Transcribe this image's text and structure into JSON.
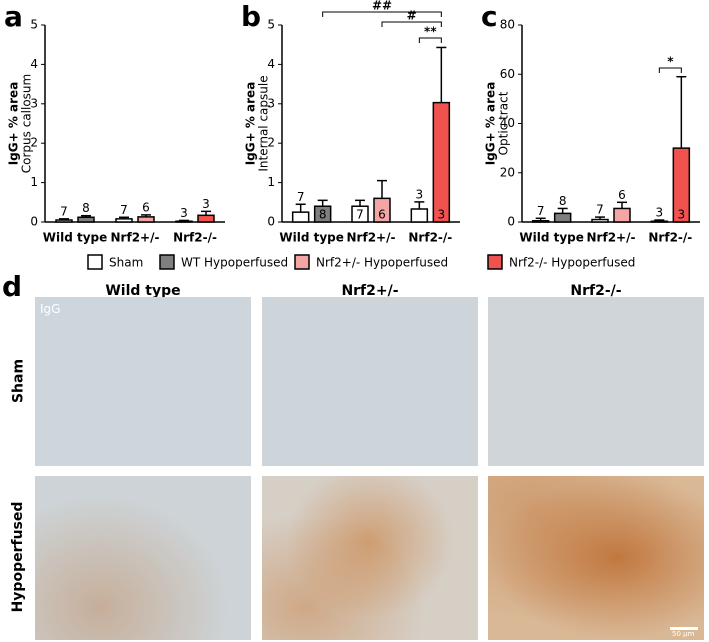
{
  "chart_data": [
    {
      "type": "bar",
      "panel": "a",
      "ylabel": "IgG+ % area",
      "ylabel2": "Corpus callosum",
      "categories": [
        "Wild type",
        "Nrf2+/-",
        "Nrf2-/-"
      ],
      "ylim": [
        0,
        5
      ],
      "yticks": [
        0,
        1,
        2,
        3,
        4,
        5
      ],
      "series": [
        {
          "name": "Sham",
          "color": "#ffffff",
          "values": [
            0.05,
            0.08,
            0.02
          ],
          "errors": [
            0.03,
            0.04,
            0.02
          ],
          "n": [
            7,
            7,
            3
          ]
        },
        {
          "name": "WT Hypoperfused",
          "color": "#7f7f7f",
          "values": [
            0.12,
            null,
            null
          ],
          "errors": [
            0.04,
            null,
            null
          ],
          "n": [
            8,
            null,
            null
          ]
        },
        {
          "name": "Nrf2+/- Hypoperfused",
          "color": "#f4a6a6",
          "values": [
            null,
            0.13,
            null
          ],
          "errors": [
            null,
            0.05,
            null
          ],
          "n": [
            null,
            6,
            null
          ]
        },
        {
          "name": "Nrf2-/- Hypoperfused",
          "color": "#f0524f",
          "values": [
            null,
            null,
            0.17
          ],
          "errors": [
            null,
            null,
            0.1
          ],
          "n": [
            null,
            null,
            3
          ]
        }
      ],
      "annotations": []
    },
    {
      "type": "bar",
      "panel": "b",
      "ylabel": "IgG+ % area",
      "ylabel2": "Internal capsule",
      "categories": [
        "Wild type",
        "Nrf2+/-",
        "Nrf2-/-"
      ],
      "ylim": [
        0,
        5
      ],
      "yticks": [
        0,
        1,
        2,
        3,
        4,
        5
      ],
      "series": [
        {
          "name": "Sham",
          "color": "#ffffff",
          "values": [
            0.25,
            0.4,
            0.33
          ],
          "errors": [
            0.2,
            0.15,
            0.18
          ],
          "n": [
            7,
            7,
            3
          ]
        },
        {
          "name": "WT Hypoperfused",
          "color": "#7f7f7f",
          "values": [
            0.4,
            null,
            null
          ],
          "errors": [
            0.15,
            null,
            null
          ],
          "n": [
            8,
            null,
            null
          ]
        },
        {
          "name": "Nrf2+/- Hypoperfused",
          "color": "#f4a6a6",
          "values": [
            null,
            0.6,
            null
          ],
          "errors": [
            null,
            0.45,
            null
          ],
          "n": [
            null,
            6,
            null
          ]
        },
        {
          "name": "Nrf2-/- Hypoperfused",
          "color": "#f0524f",
          "values": [
            null,
            null,
            3.03
          ],
          "errors": [
            null,
            null,
            1.4
          ],
          "n": [
            null,
            null,
            3
          ]
        }
      ],
      "annotations": [
        "##",
        "#",
        "**"
      ]
    },
    {
      "type": "bar",
      "panel": "c",
      "ylabel": "IgG+ % area",
      "ylabel2": "Optic tract",
      "categories": [
        "Wild type",
        "Nrf2+/-",
        "Nrf2-/-"
      ],
      "ylim": [
        0,
        80
      ],
      "yticks": [
        0,
        20,
        40,
        60,
        80
      ],
      "series": [
        {
          "name": "Sham",
          "color": "#ffffff",
          "values": [
            0.5,
            1,
            0.3
          ],
          "errors": [
            1,
            1,
            0.5
          ],
          "n": [
            7,
            7,
            3
          ]
        },
        {
          "name": "WT Hypoperfused",
          "color": "#7f7f7f",
          "values": [
            3.5,
            null,
            null
          ],
          "errors": [
            2,
            null,
            null
          ],
          "n": [
            8,
            null,
            null
          ]
        },
        {
          "name": "Nrf2+/- Hypoperfused",
          "color": "#f4a6a6",
          "values": [
            null,
            5.5,
            null
          ],
          "errors": [
            null,
            2.5,
            null
          ],
          "n": [
            null,
            6,
            null
          ]
        },
        {
          "name": "Nrf2-/- Hypoperfused",
          "color": "#f0524f",
          "values": [
            null,
            null,
            30
          ],
          "errors": [
            null,
            null,
            29
          ],
          "n": [
            null,
            null,
            3
          ]
        }
      ],
      "annotations": [
        "*"
      ]
    }
  ],
  "micrographs": {
    "panel": "d",
    "columns": [
      "Wild type",
      "Nrf2+/-",
      "Nrf2-/-"
    ],
    "rows": [
      "Sham",
      "Hypoperfused"
    ],
    "stain": "IgG",
    "scale": "50 µm"
  }
}
